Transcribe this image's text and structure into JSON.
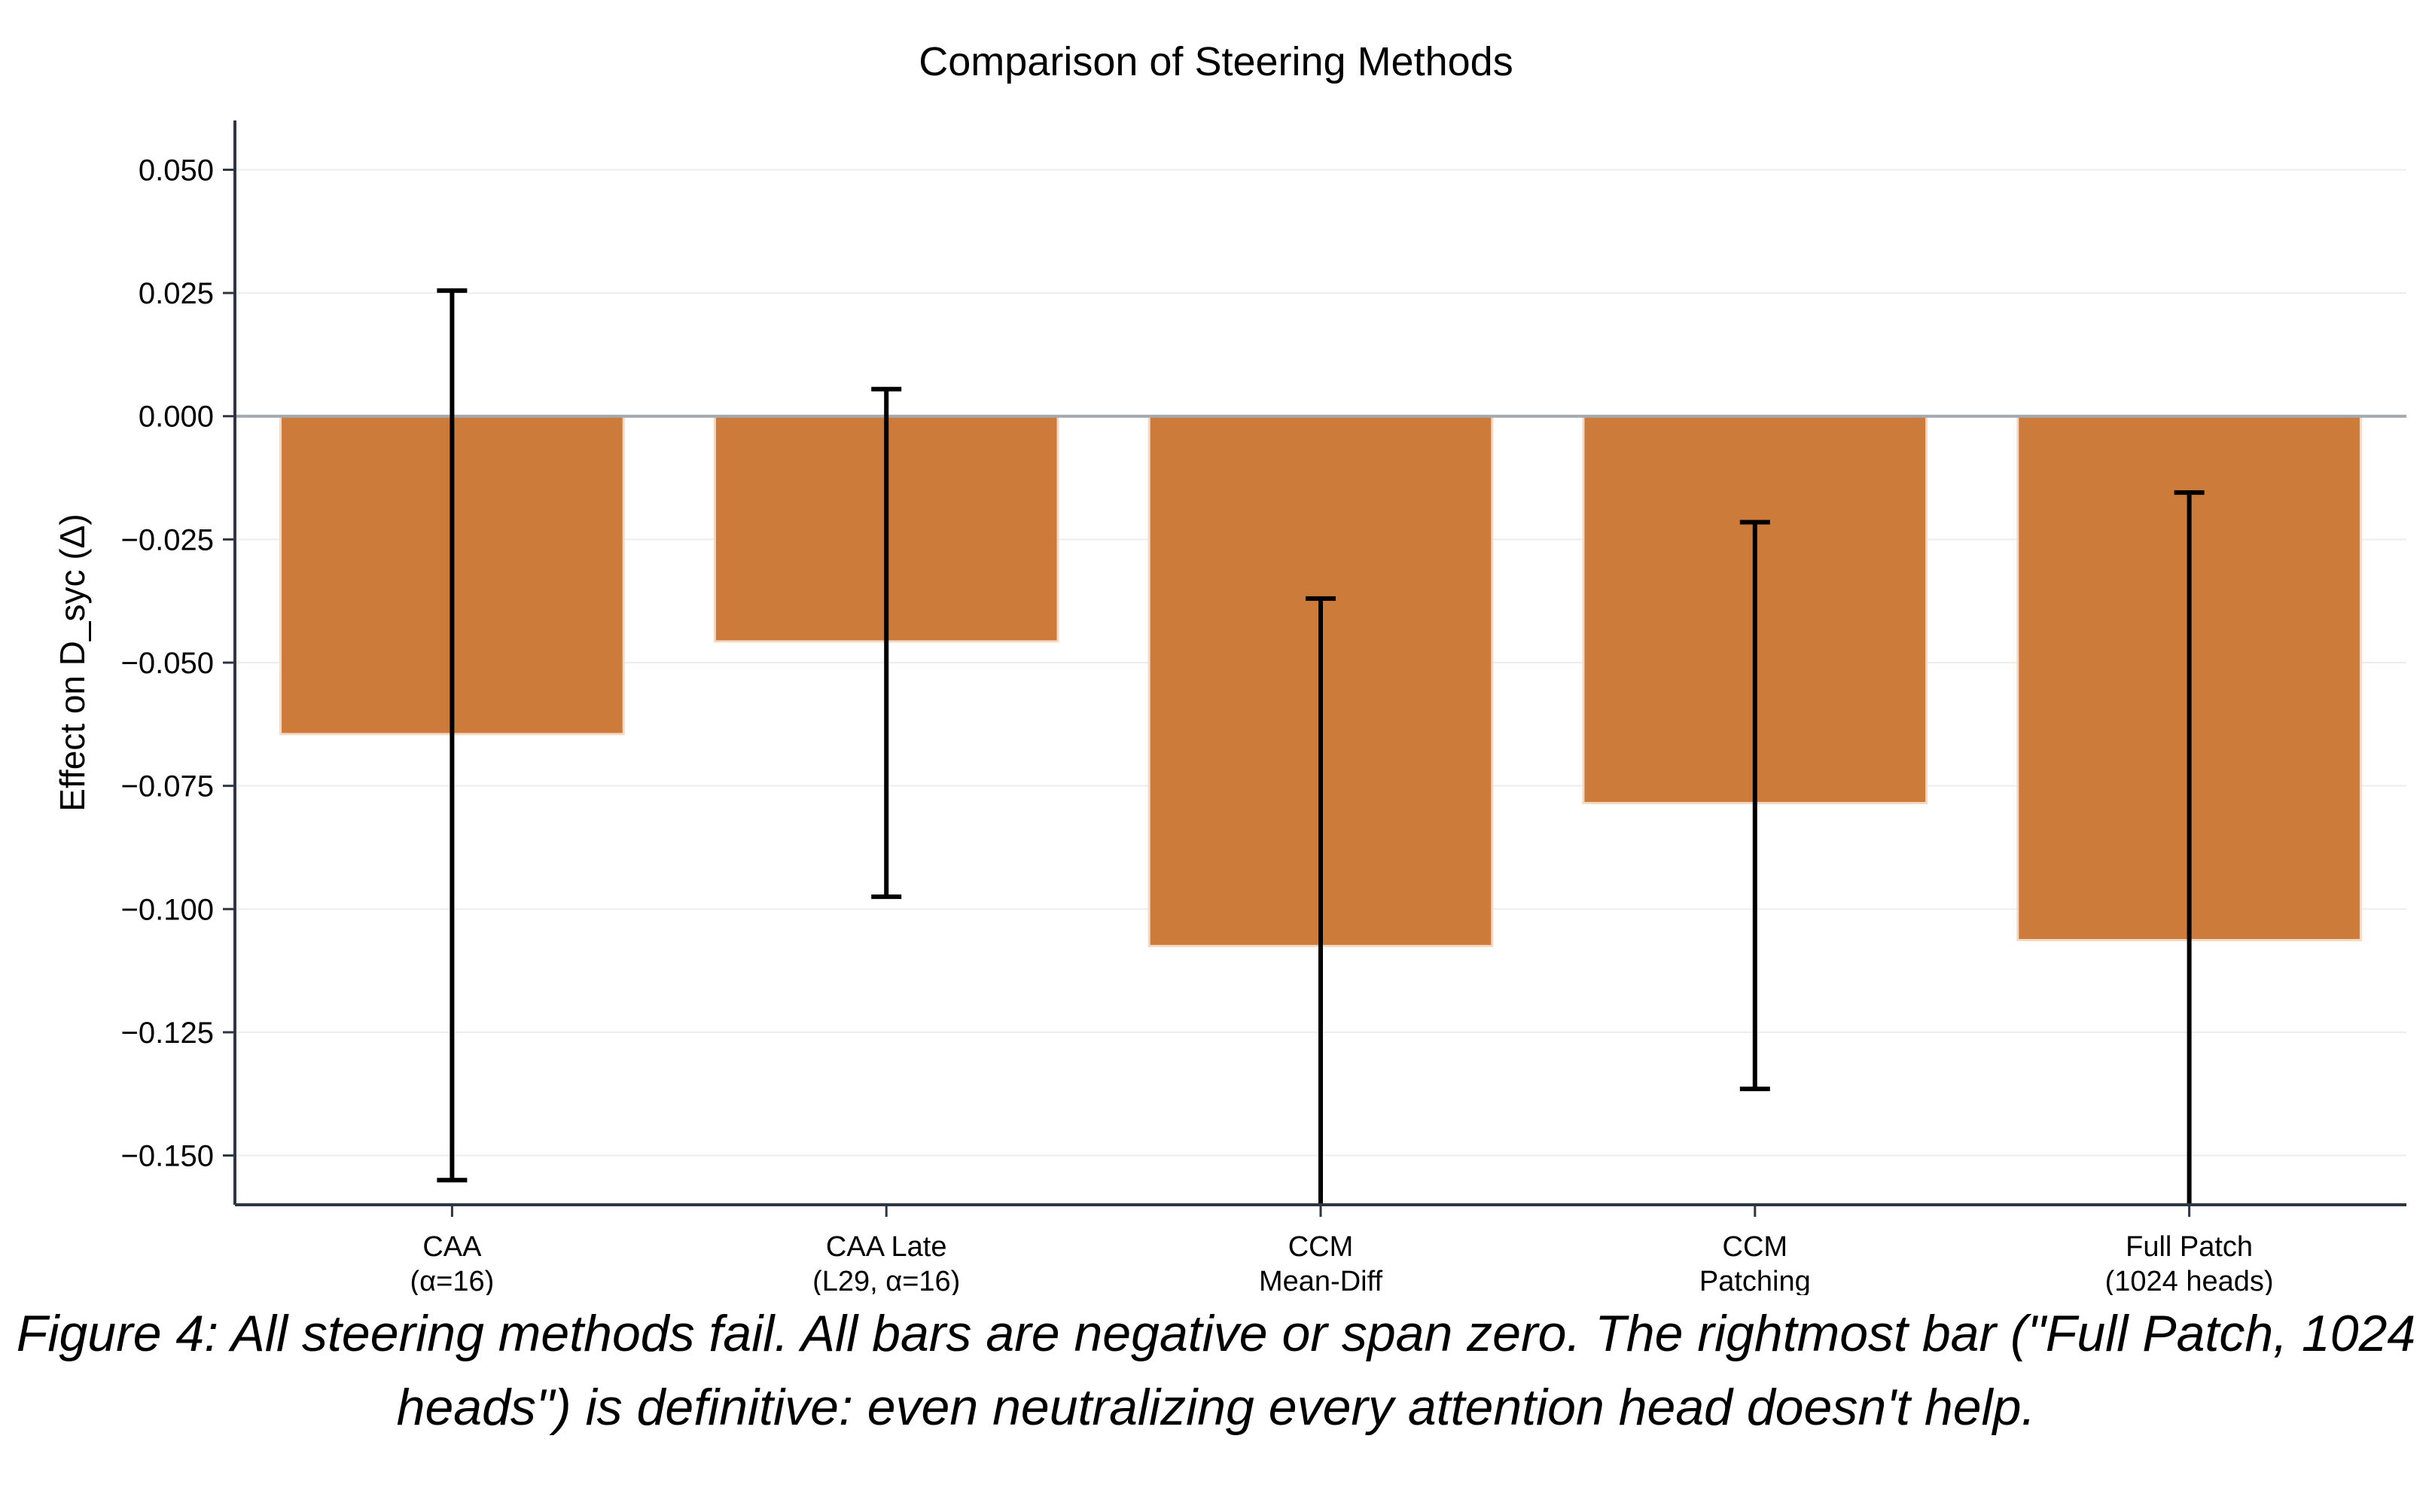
{
  "caption": "Figure 4: All steering methods fail. All bars are negative or span zero. The rightmost bar (\"Full Patch, 1024 heads\") is definitive: even neutralizing every attention head doesn't help.",
  "chart_data": {
    "type": "bar",
    "title": "Comparison of Steering Methods",
    "xlabel": "",
    "ylabel": "Effect on D_syc (Δ)",
    "categories": [
      [
        "CAA",
        "(α=16)"
      ],
      [
        "CAA Late",
        "(L29, α=16)"
      ],
      [
        "CCM",
        "Mean-Diff"
      ],
      [
        "CCM",
        "Patching"
      ],
      [
        "Full Patch",
        "(1024 heads)"
      ]
    ],
    "values": [
      -0.0645,
      -0.0457,
      -0.1075,
      -0.0785,
      -0.1063
    ],
    "error_low": [
      -0.155,
      -0.0975,
      -0.165,
      -0.1365,
      -0.165
    ],
    "error_high": [
      0.0255,
      0.0055,
      -0.037,
      -0.0215,
      -0.0155
    ],
    "ylim": [
      -0.16,
      0.06
    ],
    "yticks": [
      0.05,
      0.025,
      0.0,
      -0.025,
      -0.05,
      -0.075,
      -0.1,
      -0.125,
      -0.15
    ],
    "ytick_labels": [
      "0.050",
      "0.025",
      "0.000",
      "−0.025",
      "−0.050",
      "−0.075",
      "−0.100",
      "−0.125",
      "−0.150"
    ],
    "grid": true,
    "zero_line": true,
    "bar_color": "#CD7B3A",
    "bar_edge_color": "#F6D9C4",
    "errorbar_color": "#000000",
    "axis_color": "#2D3642",
    "zero_line_color": "#A3A9AF",
    "grid_color": "#EDEDED"
  }
}
